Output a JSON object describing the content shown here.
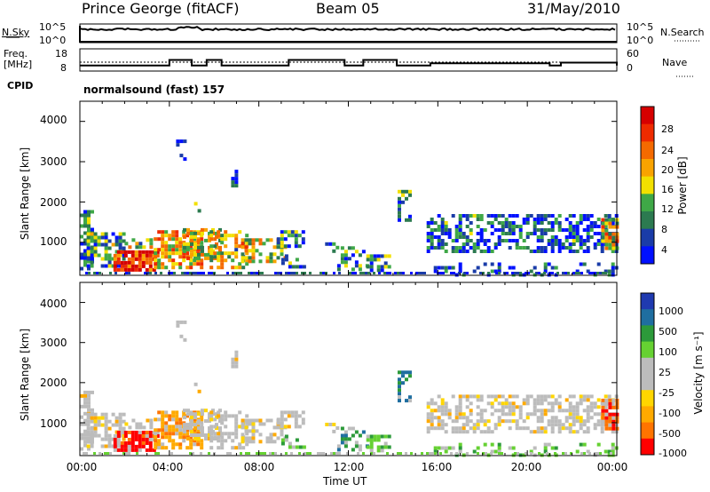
{
  "header": {
    "site": "Prince George (fitACF)",
    "beam": "Beam 05",
    "date": "31/May/2010"
  },
  "strip": {
    "nsky_label": "N.Sky",
    "nsearch_label": "N.Search",
    "counts_ticks": [
      "10^5",
      "10^0"
    ],
    "freq_label_1": "Freq.",
    "freq_label_2": "[MHz]",
    "freq_ticks": [
      "18",
      "8"
    ],
    "nave_label": "Nave",
    "nave_ticks": [
      "60",
      "0"
    ],
    "cpid_label": "CPID",
    "cpid_value": "normalsound (fast) 157"
  },
  "colors": {
    "power": [
      "#0010ff",
      "#1a3ca8",
      "#2c7a50",
      "#3fa847",
      "#f2e000",
      "#f9a300",
      "#f46a00",
      "#ee2b00",
      "#d60000"
    ],
    "velocity": [
      "#ff0000",
      "#ff7400",
      "#ffaa00",
      "#ffd600",
      "#bcbcbc",
      "#bcbcbc",
      "#66d132",
      "#2c9a3a",
      "#1f6ea0",
      "#1f3ab0"
    ]
  },
  "chart_data": [
    {
      "type": "heatmap",
      "name": "power",
      "xlabel": "",
      "ylabel": "Slant Range [km]",
      "ylim": [
        180,
        4500
      ],
      "yticks": [
        "4000",
        "3000",
        "2000",
        "1000"
      ],
      "colorbar_label": "Power [dB]",
      "colorbar_ticks": [
        "28",
        "24",
        "20",
        "16",
        "12",
        "8",
        "4"
      ]
    },
    {
      "type": "heatmap",
      "name": "velocity",
      "xlabel": "Time UT",
      "ylabel": "Slant Range [km]",
      "ylim": [
        180,
        4500
      ],
      "yticks": [
        "4000",
        "3000",
        "2000",
        "1000"
      ],
      "xticks": [
        "00:00",
        "04:00",
        "08:00",
        "12:00",
        "16:00",
        "20:00",
        "00:00"
      ],
      "colorbar_label": "Velocity [m s⁻¹]",
      "colorbar_ticks": [
        "1000",
        "500",
        "100",
        "25",
        "-25",
        "-100",
        "-500",
        "-1000"
      ]
    },
    {
      "type": "line",
      "name": "operating-frequency",
      "ylim": [
        8,
        18
      ],
      "x": [
        "00:00",
        "02:30",
        "04:00",
        "05:00",
        "05:40",
        "06:20",
        "09:20",
        "11:50",
        "12:40",
        "14:10",
        "15:40",
        "21:00",
        "21:30",
        "24:00"
      ],
      "series": [
        {
          "values": [
            10.5,
            10.5,
            13,
            10.5,
            13,
            10.5,
            13,
            10.5,
            13,
            10.5,
            11.5,
            10.5,
            11.8,
            10.5
          ]
        }
      ]
    }
  ]
}
